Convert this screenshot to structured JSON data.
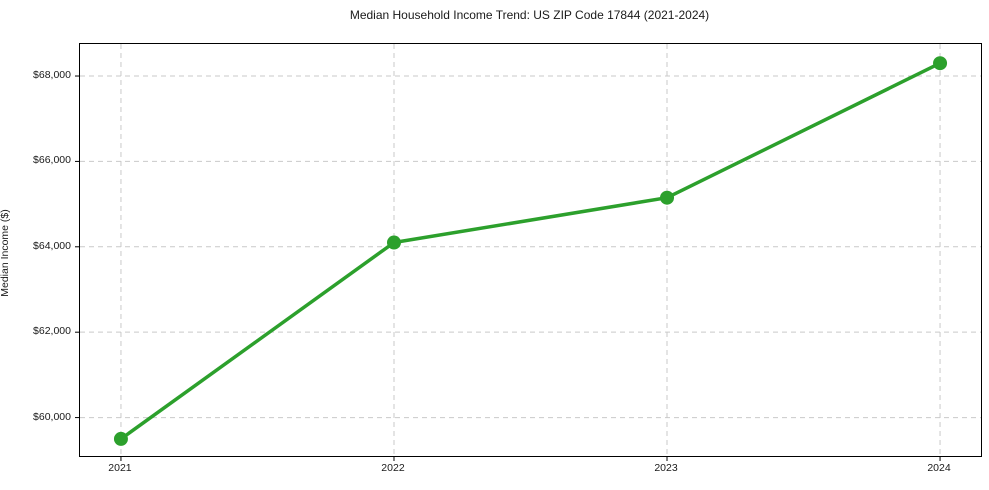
{
  "chart_data": {
    "type": "line",
    "title": "Median Household Income Trend: US ZIP Code 17844 (2021-2024)",
    "xlabel": "",
    "ylabel": "Median Income ($)",
    "x": [
      2021,
      2022,
      2023,
      2024
    ],
    "x_tick_labels": [
      "2021",
      "2022",
      "2023",
      "2024"
    ],
    "series": [
      {
        "name": "Median Household Income",
        "values": [
          59500,
          64100,
          65150,
          68300
        ]
      }
    ],
    "y_ticks": [
      60000,
      62000,
      64000,
      66000,
      68000
    ],
    "y_tick_labels": [
      "$60,000",
      "$62,000",
      "$64,000",
      "$66,000",
      "$68,000"
    ],
    "xlim": [
      2020.85,
      2024.15
    ],
    "ylim": [
      59100,
      68750
    ],
    "grid": true,
    "grid_style": "dashed",
    "legend": false,
    "colors": {
      "line": "#2ca02c",
      "marker": "#2ca02c",
      "grid": "#c9c9c9",
      "spine": "#000000",
      "text": "#1a1a1a",
      "background": "#ffffff"
    }
  }
}
